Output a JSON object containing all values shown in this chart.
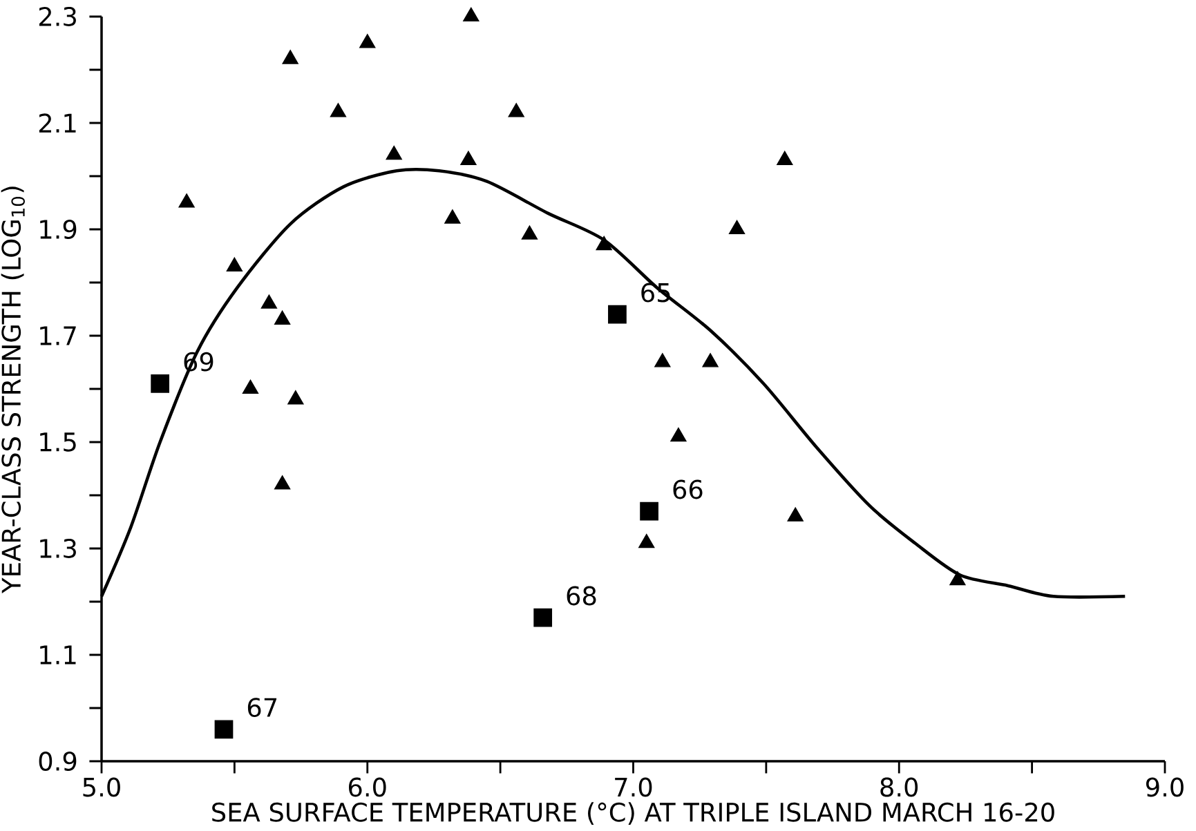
{
  "chart_data": {
    "type": "scatter",
    "xlabel": "SEA SURFACE TEMPERATURE (°C) AT TRIPLE ISLAND MARCH 16-20",
    "ylabel": "YEAR-CLASS STRENGTH (LOG$_{10}$)",
    "xlim": [
      5.0,
      9.0
    ],
    "ylim": [
      0.9,
      2.3
    ],
    "xticks": [
      {
        "value": 5.0,
        "label": "5.0"
      },
      {
        "value": 6.0,
        "label": "6.0"
      },
      {
        "value": 7.0,
        "label": "7.0"
      },
      {
        "value": 8.0,
        "label": "8.0"
      },
      {
        "value": 9.0,
        "label": "9.0"
      }
    ],
    "yticks": [
      {
        "value": 0.9,
        "label": "0.9"
      },
      {
        "value": 1.1,
        "label": "1.1"
      },
      {
        "value": 1.3,
        "label": "1.3"
      },
      {
        "value": 1.5,
        "label": "1.5"
      },
      {
        "value": 1.7,
        "label": "1.7"
      },
      {
        "value": 1.9,
        "label": "1.9"
      },
      {
        "value": 2.1,
        "label": "2.1"
      },
      {
        "value": 2.3,
        "label": "2.3"
      }
    ],
    "series": [
      {
        "marker": "triangle",
        "color": "#000000",
        "x": [
          5.32,
          5.5,
          5.63,
          5.68,
          5.56,
          5.73,
          5.68,
          5.71,
          5.89,
          6.0,
          6.1,
          6.32,
          6.38,
          6.39,
          6.56,
          6.61,
          6.89,
          7.11,
          7.29,
          7.17,
          7.05,
          7.39,
          7.57,
          7.61,
          8.22
        ],
        "values": [
          1.95,
          1.83,
          1.76,
          1.73,
          1.6,
          1.58,
          1.42,
          2.22,
          2.12,
          2.25,
          2.04,
          1.92,
          2.03,
          2.3,
          2.12,
          1.89,
          1.87,
          1.65,
          1.65,
          1.51,
          1.31,
          1.9,
          2.03,
          1.36,
          1.24
        ]
      },
      {
        "marker": "square",
        "color": "#000000",
        "x": [
          5.22,
          5.46,
          6.66,
          6.94,
          7.06
        ],
        "values": [
          1.61,
          0.96,
          1.17,
          1.74,
          1.37
        ]
      },
      {
        "type": "line",
        "marker": "none",
        "line_style": "solid",
        "color": "#000000",
        "x": [
          5.0,
          5.11,
          5.22,
          5.36,
          5.51,
          5.71,
          5.91,
          6.11,
          6.27,
          6.45,
          6.68,
          6.89,
          7.09,
          7.29,
          7.49,
          7.69,
          7.89,
          8.06,
          8.23,
          8.41,
          8.58,
          8.85
        ],
        "values": [
          1.21,
          1.34,
          1.5,
          1.67,
          1.79,
          1.91,
          1.98,
          2.01,
          2.01,
          1.99,
          1.93,
          1.88,
          1.79,
          1.71,
          1.61,
          1.49,
          1.38,
          1.31,
          1.25,
          1.23,
          1.21,
          1.21
        ]
      }
    ],
    "annotations": [
      {
        "text": "69",
        "x": 5.22,
        "y": 1.61
      },
      {
        "text": "67",
        "x": 5.46,
        "y": 0.96
      },
      {
        "text": "68",
        "x": 6.66,
        "y": 1.17
      },
      {
        "text": "65",
        "x": 6.94,
        "y": 1.74
      },
      {
        "text": "66",
        "x": 7.06,
        "y": 1.37
      }
    ]
  }
}
